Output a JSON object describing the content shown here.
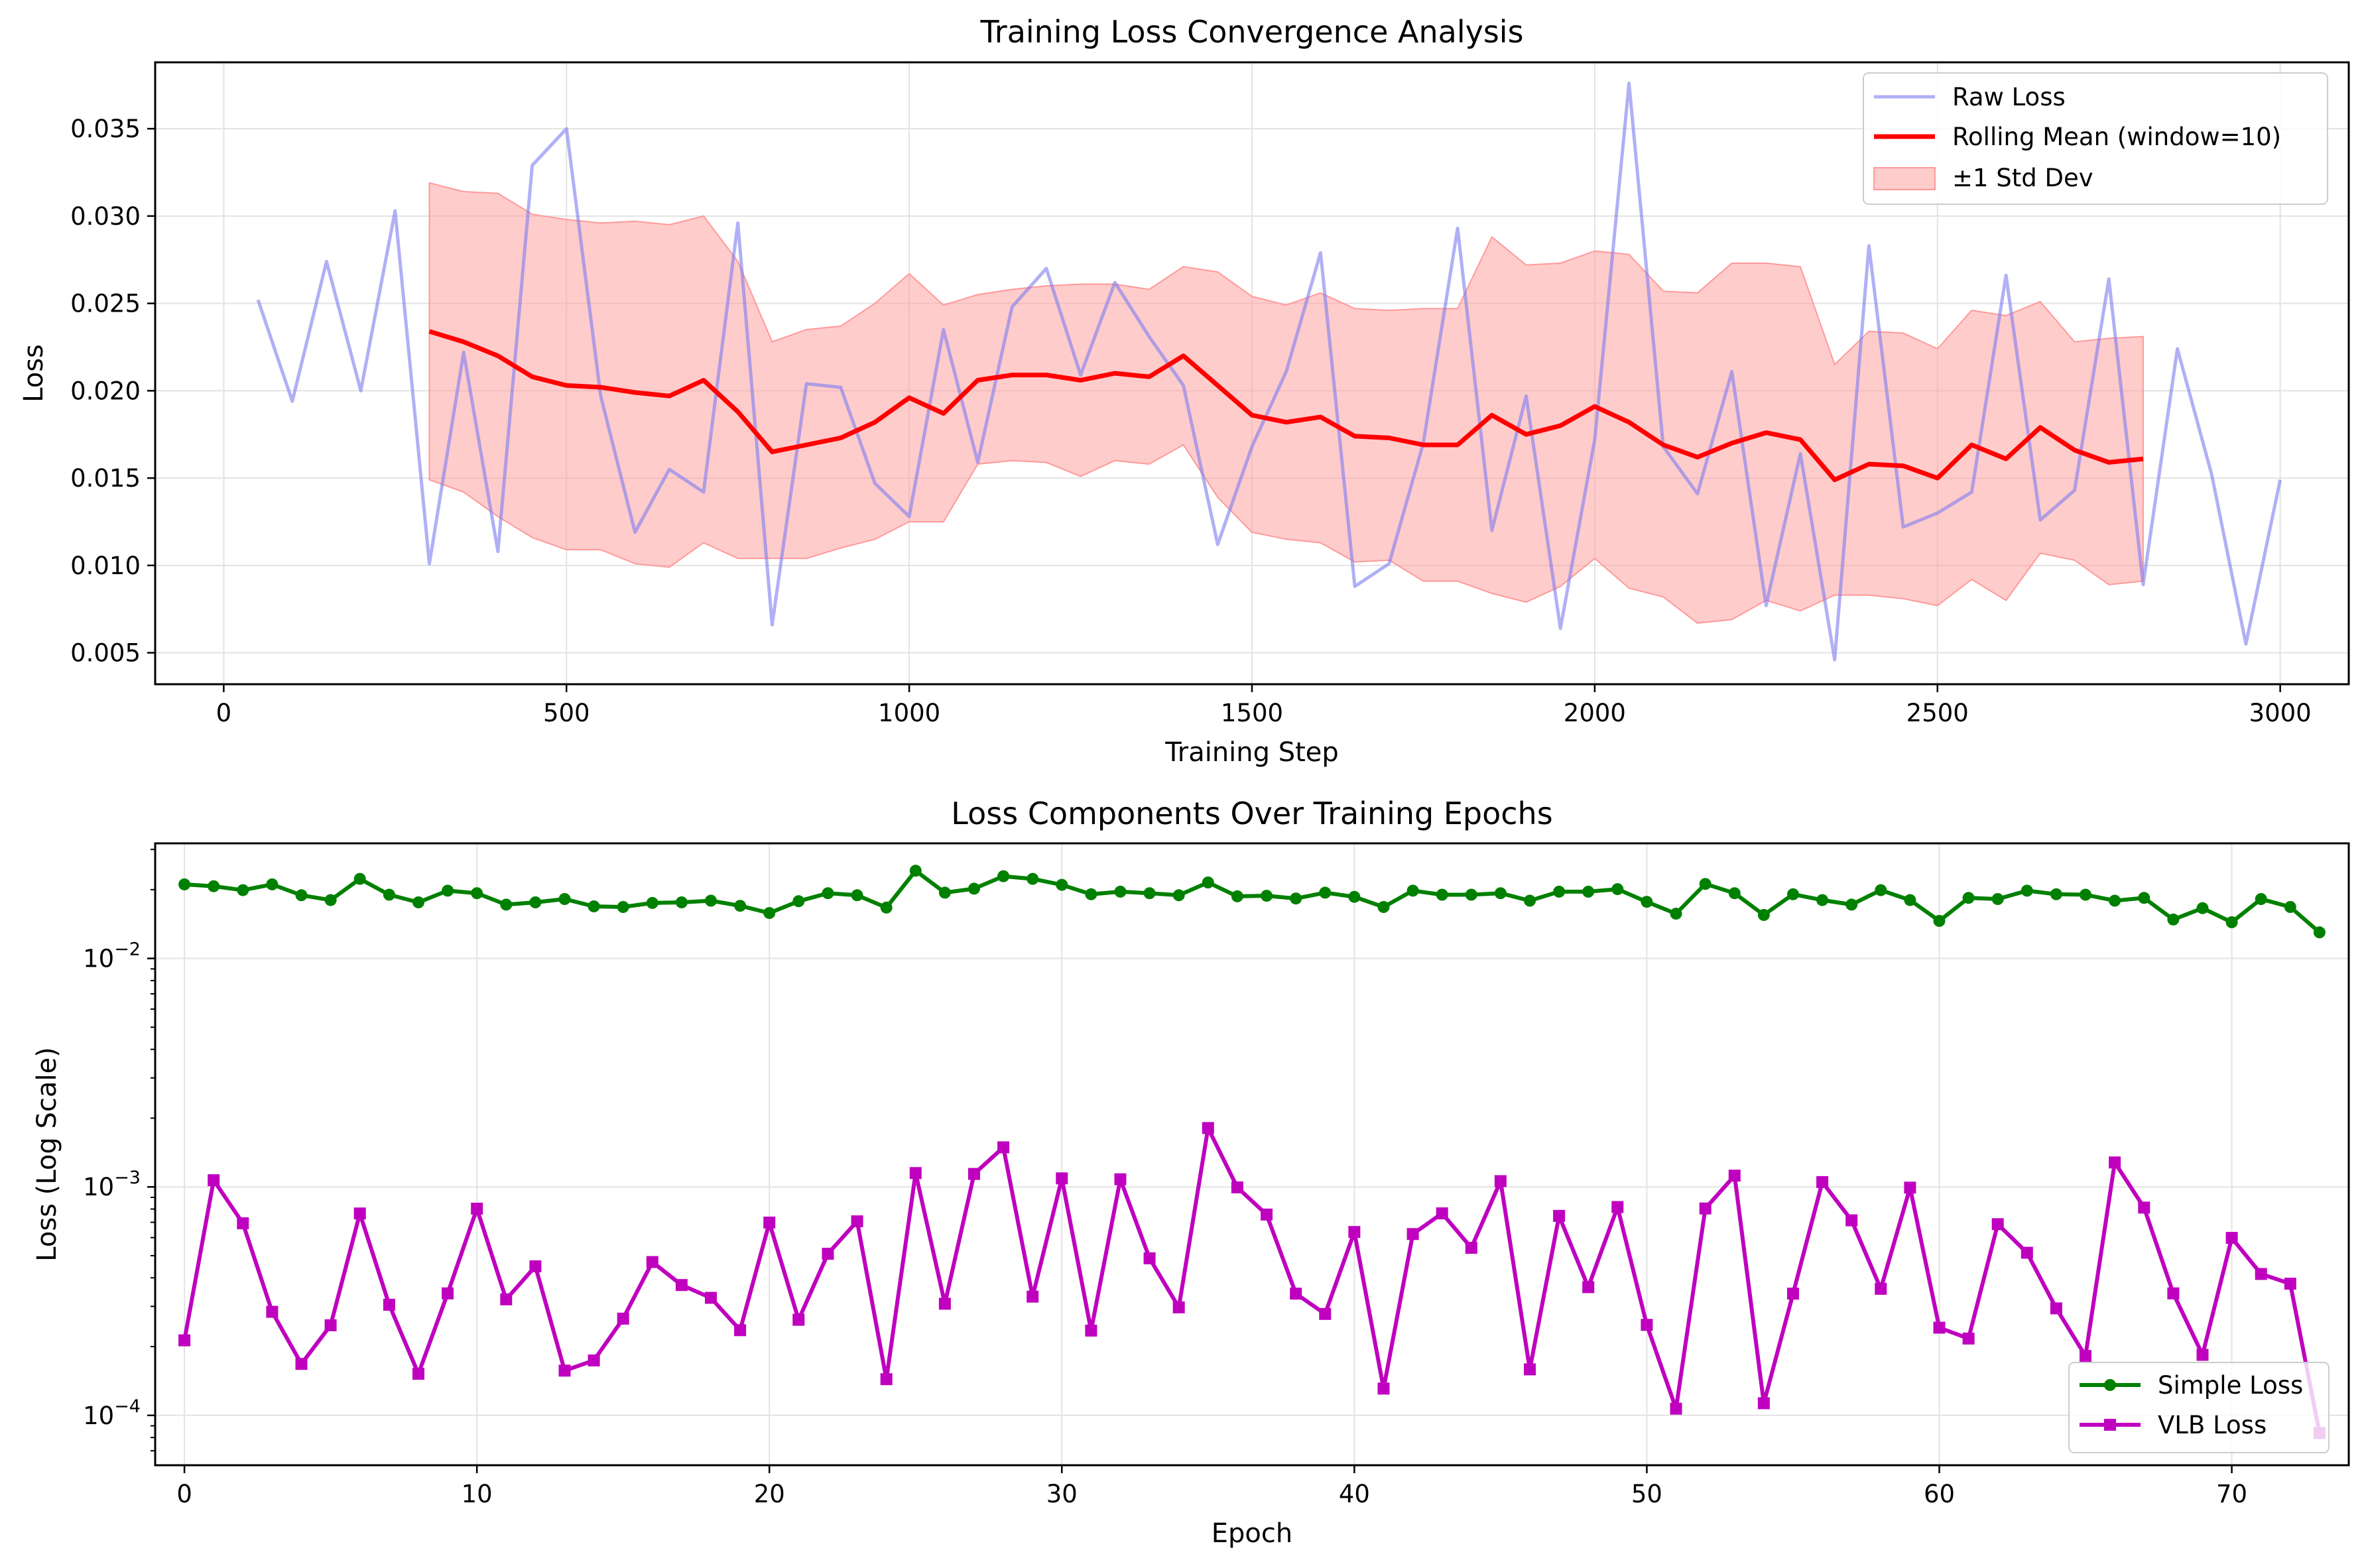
{
  "colors": {
    "raw_loss": "#7b7bf0",
    "rolling_mean": "#ff0000",
    "std_band": "#ff9999",
    "simple_loss": "#008000",
    "vlb_loss": "#bf00bf",
    "grid": "#e3e3e3"
  },
  "chart_data": [
    {
      "type": "line",
      "title": "Training Loss Convergence Analysis",
      "xlabel": "Training Step",
      "ylabel": "Loss",
      "xlim": [
        -100,
        3100
      ],
      "ylim": [
        0.0032,
        0.0388
      ],
      "xticks": [
        0,
        500,
        1000,
        1500,
        2000,
        2500,
        3000
      ],
      "xtick_labels": [
        "0",
        "500",
        "1000",
        "1500",
        "2000",
        "2500",
        "3000"
      ],
      "yticks": [
        0.005,
        0.01,
        0.015,
        0.02,
        0.025,
        0.03,
        0.035
      ],
      "ytick_labels": [
        "0.005",
        "0.010",
        "0.015",
        "0.020",
        "0.025",
        "0.030",
        "0.035"
      ],
      "grid": true,
      "legend_position": "top-right",
      "legend": [
        "Raw Loss",
        "Rolling Mean (window=10)",
        "±1 Std Dev"
      ],
      "series": [
        {
          "name": "Raw Loss",
          "x": [
            50,
            100,
            150,
            200,
            250,
            300,
            350,
            400,
            450,
            500,
            550,
            600,
            650,
            700,
            750,
            800,
            850,
            900,
            950,
            1000,
            1050,
            1100,
            1150,
            1200,
            1250,
            1300,
            1350,
            1400,
            1450,
            1500,
            1550,
            1600,
            1650,
            1700,
            1750,
            1800,
            1850,
            1900,
            1950,
            2000,
            2050,
            2100,
            2150,
            2200,
            2250,
            2300,
            2350,
            2400,
            2450,
            2500,
            2550,
            2600,
            2650,
            2700,
            2750,
            2800,
            2850,
            2900,
            2950,
            3000
          ],
          "values": [
            0.0252,
            0.0194,
            0.0274,
            0.02,
            0.0303,
            0.0101,
            0.0222,
            0.0108,
            0.0329,
            0.035,
            0.0197,
            0.0119,
            0.0155,
            0.0142,
            0.0296,
            0.0066,
            0.0204,
            0.0202,
            0.0147,
            0.0128,
            0.0235,
            0.0159,
            0.0248,
            0.027,
            0.0209,
            0.0262,
            0.0231,
            0.0203,
            0.0112,
            0.0168,
            0.0211,
            0.0279,
            0.0088,
            0.0101,
            0.017,
            0.0293,
            0.012,
            0.0197,
            0.0064,
            0.0172,
            0.0376,
            0.0168,
            0.0141,
            0.0211,
            0.0077,
            0.0164,
            0.0046,
            0.0283,
            0.0122,
            0.013,
            0.0142,
            0.0266,
            0.0126,
            0.0143,
            0.0264,
            0.0089,
            0.0224,
            0.0152,
            0.0055,
            0.0149
          ]
        },
        {
          "name": "Rolling Mean (window=10)",
          "x": [
            300,
            350,
            400,
            450,
            500,
            550,
            600,
            650,
            700,
            750,
            800,
            850,
            900,
            950,
            1000,
            1050,
            1100,
            1150,
            1200,
            1250,
            1300,
            1350,
            1400,
            1450,
            1500,
            1550,
            1600,
            1650,
            1700,
            1750,
            1800,
            1850,
            1900,
            1950,
            2000,
            2050,
            2100,
            2150,
            2200,
            2250,
            2300,
            2350,
            2400,
            2450,
            2500,
            2550,
            2600,
            2650,
            2700,
            2750,
            2800
          ],
          "values": [
            0.0234,
            0.0228,
            0.022,
            0.0208,
            0.0203,
            0.0202,
            0.0199,
            0.0197,
            0.0206,
            0.0188,
            0.0165,
            0.0169,
            0.0173,
            0.0182,
            0.0196,
            0.0187,
            0.0206,
            0.0209,
            0.0209,
            0.0206,
            0.021,
            0.0208,
            0.022,
            0.0203,
            0.0186,
            0.0182,
            0.0185,
            0.0174,
            0.0173,
            0.0169,
            0.0169,
            0.0186,
            0.0175,
            0.018,
            0.0191,
            0.0182,
            0.0169,
            0.0162,
            0.017,
            0.0176,
            0.0172,
            0.0149,
            0.0158,
            0.0157,
            0.015,
            0.0169,
            0.0161,
            0.0179,
            0.0166,
            0.0159,
            0.0161
          ]
        }
      ],
      "band": {
        "name": "±1 Std Dev",
        "x": [
          300,
          350,
          400,
          450,
          500,
          550,
          600,
          650,
          700,
          750,
          800,
          850,
          900,
          950,
          1000,
          1050,
          1100,
          1150,
          1200,
          1250,
          1300,
          1350,
          1400,
          1450,
          1500,
          1550,
          1600,
          1650,
          1700,
          1750,
          1800,
          1850,
          1900,
          1950,
          2000,
          2050,
          2100,
          2150,
          2200,
          2250,
          2300,
          2350,
          2400,
          2450,
          2500,
          2550,
          2600,
          2650,
          2700,
          2750,
          2800
        ],
        "upper": [
          0.0319,
          0.0314,
          0.0313,
          0.0301,
          0.0298,
          0.0296,
          0.0297,
          0.0295,
          0.03,
          0.0274,
          0.0228,
          0.0235,
          0.0237,
          0.025,
          0.0267,
          0.0249,
          0.0255,
          0.0258,
          0.026,
          0.0261,
          0.0261,
          0.0258,
          0.0271,
          0.0268,
          0.0254,
          0.0249,
          0.0256,
          0.0247,
          0.0246,
          0.0247,
          0.0247,
          0.0288,
          0.0272,
          0.0273,
          0.028,
          0.0278,
          0.0257,
          0.0256,
          0.0273,
          0.0273,
          0.0271,
          0.0215,
          0.0234,
          0.0233,
          0.0224,
          0.0246,
          0.0243,
          0.0251,
          0.0228,
          0.023,
          0.0231
        ],
        "lower": [
          0.0149,
          0.0142,
          0.0128,
          0.0116,
          0.0109,
          0.0109,
          0.0101,
          0.0099,
          0.0113,
          0.0104,
          0.0104,
          0.0104,
          0.011,
          0.0115,
          0.0125,
          0.0125,
          0.0158,
          0.016,
          0.0159,
          0.0151,
          0.016,
          0.0158,
          0.0169,
          0.0139,
          0.0119,
          0.0115,
          0.0113,
          0.0102,
          0.0103,
          0.0091,
          0.0091,
          0.0084,
          0.0079,
          0.0088,
          0.0104,
          0.0087,
          0.0082,
          0.0067,
          0.0069,
          0.008,
          0.0074,
          0.0083,
          0.0083,
          0.0081,
          0.0077,
          0.0092,
          0.008,
          0.0107,
          0.0103,
          0.0089,
          0.0091
        ]
      }
    },
    {
      "type": "line",
      "title": "Loss Components Over Training Epochs",
      "xlabel": "Epoch",
      "ylabel": "Loss (Log Scale)",
      "yscale": "log",
      "xlim": [
        -1,
        74
      ],
      "ylim": [
        6.05e-05,
        0.0319
      ],
      "xticks": [
        0,
        10,
        20,
        30,
        40,
        50,
        60,
        70
      ],
      "xtick_labels": [
        "0",
        "10",
        "20",
        "30",
        "40",
        "50",
        "60",
        "70"
      ],
      "yticks": [
        0.0001,
        0.001,
        0.01
      ],
      "ytick_labels": [
        {
          "base": "10",
          "exp": "−4"
        },
        {
          "base": "10",
          "exp": "−3"
        },
        {
          "base": "10",
          "exp": "−2"
        }
      ],
      "grid": true,
      "legend_position": "bottom-right",
      "legend": [
        "Simple Loss",
        "VLB Loss"
      ],
      "x": [
        0,
        1,
        2,
        3,
        4,
        5,
        6,
        7,
        8,
        9,
        10,
        11,
        12,
        13,
        14,
        15,
        16,
        17,
        18,
        19,
        20,
        21,
        22,
        23,
        24,
        25,
        26,
        27,
        28,
        29,
        30,
        31,
        32,
        33,
        34,
        35,
        36,
        37,
        38,
        39,
        40,
        41,
        42,
        43,
        44,
        45,
        46,
        47,
        48,
        49,
        50,
        51,
        52,
        53,
        54,
        55,
        56,
        57,
        58,
        59,
        60,
        61,
        62,
        63,
        64,
        65,
        66,
        67,
        68,
        69,
        70,
        71,
        72,
        73
      ],
      "series": [
        {
          "name": "Simple Loss",
          "marker": "circle",
          "values": [
            0.0211,
            0.0207,
            0.0199,
            0.0211,
            0.0189,
            0.018,
            0.0223,
            0.019,
            0.0176,
            0.0198,
            0.0193,
            0.0172,
            0.0176,
            0.0182,
            0.0169,
            0.0168,
            0.0175,
            0.0176,
            0.0179,
            0.017,
            0.0158,
            0.0178,
            0.0193,
            0.0189,
            0.0167,
            0.0242,
            0.0194,
            0.0202,
            0.0229,
            0.0223,
            0.021,
            0.0191,
            0.0196,
            0.0193,
            0.0189,
            0.0215,
            0.0187,
            0.0188,
            0.0183,
            0.0194,
            0.0186,
            0.0168,
            0.0198,
            0.019,
            0.019,
            0.0193,
            0.0179,
            0.0196,
            0.0196,
            0.0201,
            0.0177,
            0.0157,
            0.0212,
            0.0193,
            0.0155,
            0.0191,
            0.018,
            0.0172,
            0.0199,
            0.018,
            0.0146,
            0.0184,
            0.0182,
            0.0198,
            0.0191,
            0.019,
            0.0179,
            0.0184,
            0.0148,
            0.0166,
            0.0144,
            0.0182,
            0.0168,
            0.013
          ]
        },
        {
          "name": "VLB Loss",
          "marker": "square",
          "values": [
            0.000213,
            0.00107,
            0.000693,
            0.000284,
            0.000168,
            0.000248,
            0.000765,
            0.000305,
            0.000152,
            0.000342,
            0.000803,
            0.000322,
            0.000449,
            0.000157,
            0.000174,
            0.000265,
            0.000469,
            0.000372,
            0.000327,
            0.000236,
            0.000698,
            0.000262,
            0.00051,
            0.000707,
            0.000144,
            0.00115,
            0.000308,
            0.00114,
            0.00149,
            0.000331,
            0.00109,
            0.000235,
            0.00108,
            0.000487,
            0.000297,
            0.00181,
            0.000995,
            0.000757,
            0.000341,
            0.000278,
            0.000635,
            0.000131,
            0.000622,
            0.000766,
            0.000541,
            0.00106,
            0.000159,
            0.000747,
            0.000364,
            0.000816,
            0.000249,
            0.000107,
            0.000805,
            0.00112,
            0.000113,
            0.000341,
            0.00105,
            0.000714,
            0.000358,
            0.000993,
            0.000242,
            0.000217,
            0.000687,
            0.000515,
            0.000294,
            0.000182,
            0.00128,
            0.000812,
            0.000342,
            0.000184,
            0.000598,
            0.000416,
            0.000377,
            8.37e-05
          ]
        }
      ]
    }
  ]
}
